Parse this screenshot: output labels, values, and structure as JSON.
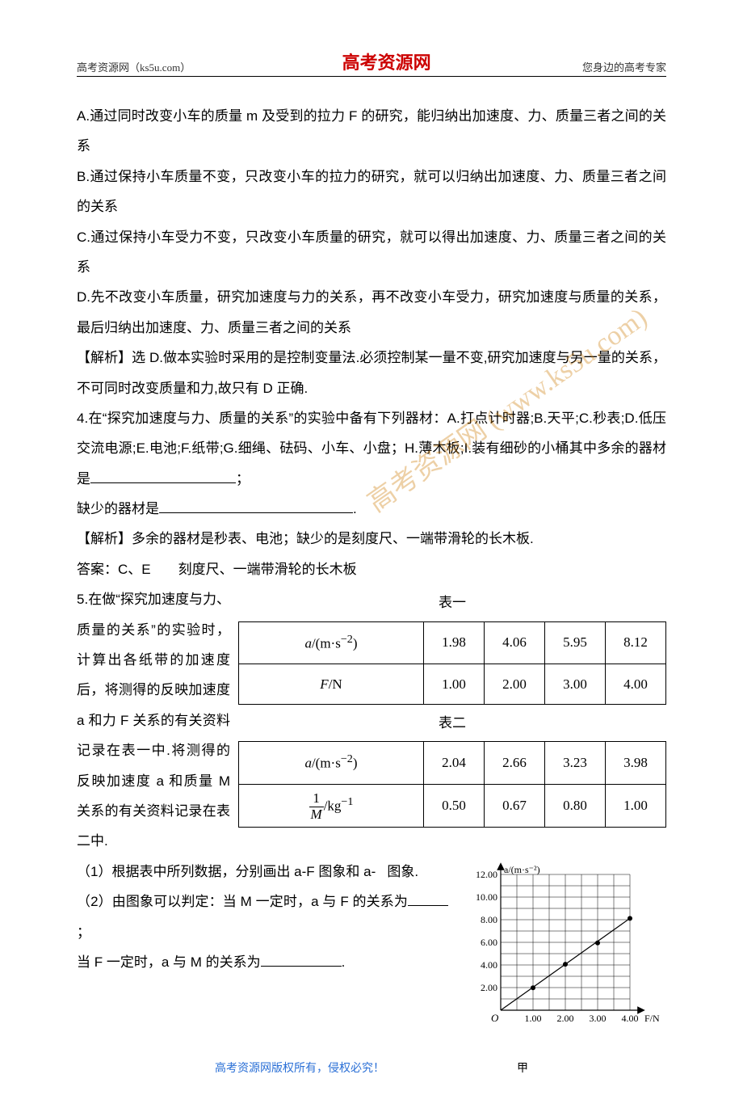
{
  "header": {
    "left": "高考资源网（ks5u.com）",
    "center": "高考资源网",
    "right": "您身边的高考专家"
  },
  "watermarks": {
    "w1": "高考资源网 (www.ks5u.com)"
  },
  "paragraphs": {
    "a": "A.通过同时改变小车的质量 m 及受到的拉力 F 的研究，能归纳出加速度、力、质量三者之间的关系",
    "b": "B.通过保持小车质量不变，只改变小车的拉力的研究，就可以归纳出加速度、力、质量三者之间的关系",
    "c": "C.通过保持小车受力不变，只改变小车质量的研究，就可以得出加速度、力、质量三者之间的关系",
    "d": "D.先不改变小车质量，研究加速度与力的关系，再不改变小车受力，研究加速度与质量的关系，最后归纳出加速度、力、质量三者之间的关系",
    "sol3": "【解析】选 D.做本实验时采用的是控制变量法.必须控制某一量不变,研究加速度与另一量的关系，不可同时改变质量和力,故只有 D 正确.",
    "q4a": "4.在“探究加速度与力、质量的关系”的实验中备有下列器材：A.打点计时器;B.天平;C.秒表;D.低压交流电源;E.电池;F.纸带;G.细绳、砝码、小车、小盘；H.薄木板;I.装有细砂的小桶其中多余的器材是",
    "q4a_tail": "；",
    "q4b": "缺少的器材是",
    "q4b_tail": ".",
    "sol4": "【解析】多余的器材是秒表、电池；缺少的是刻度尺、一端带滑轮的长木板.",
    "ans4": "答案：C、E  刻度尺、一端带滑轮的长木板",
    "q5a": "5.在做“探究加速度与力、质量的关系”的实验时，计算出各纸带的加速度后，将测得的反映加速度 a 和力 F 关系的有关资料记录在表一中.将测得的反映加速度 a 和质量 M 关系的有关资料记录在表二中.",
    "q5_1_pre": "（1）根据表中所列数据，分别画出 a-F 图象和 a-",
    "q5_1_post": "图象.",
    "q5_2": "（2）由图象可以判定：当 M 一定时，a 与 F 的关系为",
    "q5_2_tail": "；",
    "q5_3": "当 F 一定时，a 与 M 的关系为",
    "q5_3_tail": "."
  },
  "table1": {
    "caption": "表一",
    "rows": {
      "r1_label": "a/(m·s⁻²)",
      "r1": [
        "1.98",
        "4.06",
        "5.95",
        "8.12"
      ],
      "r2_label": "F/N",
      "r2": [
        "1.00",
        "2.00",
        "3.00",
        "4.00"
      ]
    }
  },
  "table2": {
    "caption": "表二",
    "rows": {
      "r1_label": "a/(m·s⁻²)",
      "r1": [
        "2.04",
        "2.66",
        "3.23",
        "3.98"
      ],
      "r2_label_html": "<span style='display:inline-block;vertical-align:middle;'><span style='display:block;border-bottom:1px solid #000;padding:0 4px;line-height:1.1;'>1</span><span style='display:block;padding:0 2px;line-height:1.1;font-style:italic;'>M</span></span>/kg⁻¹",
      "r2": [
        "0.50",
        "0.67",
        "0.80",
        "1.00"
      ]
    }
  },
  "graph": {
    "y_label": "a/(m·s⁻²)",
    "x_label": "F/N",
    "ylim": [
      0,
      12
    ],
    "xlim": [
      0,
      4
    ],
    "y_ticks": [
      "12.00",
      "10.00",
      "8.00",
      "6.00",
      "4.00",
      "2.00"
    ],
    "x_ticks": [
      "1.00",
      "2.00",
      "3.00",
      "4.00"
    ],
    "origin_label": "O",
    "caption": "甲",
    "background": "#ffffff",
    "grid_color": "#000000",
    "axis_color": "#000000",
    "point_color": "#000000",
    "line_color": "#000000",
    "points": [
      {
        "F": 1.0,
        "a": 1.98
      },
      {
        "F": 2.0,
        "a": 4.06
      },
      {
        "F": 3.0,
        "a": 5.95
      },
      {
        "F": 4.0,
        "a": 8.12
      }
    ]
  },
  "footer": {
    "text": "高考资源网版权所有，侵权必究！",
    "label": "甲"
  }
}
